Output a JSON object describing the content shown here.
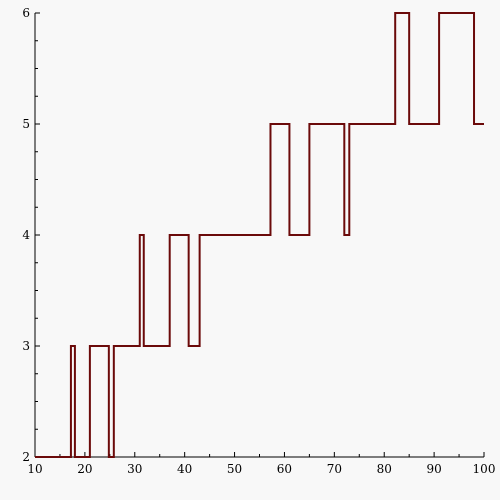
{
  "chart_data": {
    "type": "line",
    "subtype": "step",
    "title": "",
    "xlabel": "",
    "ylabel": "",
    "xlim": [
      10,
      100
    ],
    "ylim": [
      2,
      6
    ],
    "x_ticks": [
      "10",
      "20",
      "30",
      "40",
      "50",
      "60",
      "70",
      "80",
      "90",
      "100"
    ],
    "y_ticks": [
      "2",
      "3",
      "4",
      "5",
      "6"
    ],
    "grid": false,
    "legend": "none",
    "line_color": "#6b0a0a",
    "series": [
      {
        "points": [
          [
            10,
            2
          ],
          [
            17.2,
            2
          ],
          [
            17.2,
            3
          ],
          [
            18,
            3
          ],
          [
            18,
            2
          ],
          [
            21,
            2
          ],
          [
            21,
            3
          ],
          [
            24.8,
            3
          ],
          [
            24.8,
            2
          ],
          [
            25.8,
            2
          ],
          [
            25.8,
            3
          ],
          [
            31,
            3
          ],
          [
            31,
            4
          ],
          [
            31.8,
            4
          ],
          [
            31.8,
            3
          ],
          [
            37,
            3
          ],
          [
            37,
            4
          ],
          [
            40.8,
            4
          ],
          [
            40.8,
            3
          ],
          [
            43,
            3
          ],
          [
            43,
            4
          ],
          [
            57.2,
            4
          ],
          [
            57.2,
            5
          ],
          [
            61,
            5
          ],
          [
            61,
            4
          ],
          [
            65,
            4
          ],
          [
            65,
            5
          ],
          [
            72,
            5
          ],
          [
            72,
            4
          ],
          [
            73,
            4
          ],
          [
            73,
            5
          ],
          [
            82.2,
            5
          ],
          [
            82.2,
            6
          ],
          [
            85,
            6
          ],
          [
            85,
            5
          ],
          [
            91,
            5
          ],
          [
            91,
            6
          ],
          [
            98,
            6
          ],
          [
            98,
            5
          ],
          [
            100,
            5
          ]
        ]
      }
    ]
  }
}
